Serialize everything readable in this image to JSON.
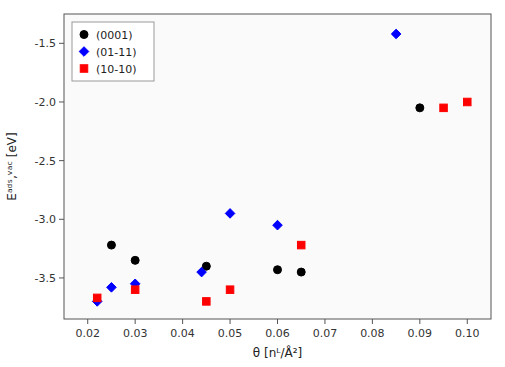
{
  "chart_data": {
    "type": "scatter",
    "xlabel": "θ [nᴸ/Å²]",
    "ylabel": "Eᵃᵈˢ,ᵛᵃᶜ [eV]",
    "series": [
      {
        "name": "(0001)",
        "color": "black",
        "marker": "circle",
        "x": [
          0.025,
          0.03,
          0.045,
          0.06,
          0.065,
          0.09
        ],
        "values": [
          -3.22,
          -3.35,
          -3.4,
          -3.43,
          -3.45,
          -2.05
        ]
      },
      {
        "name": "(01-11)",
        "color": "blue",
        "marker": "diamond",
        "x": [
          0.022,
          0.025,
          0.03,
          0.044,
          0.05,
          0.06,
          0.085
        ],
        "values": [
          -3.7,
          -3.58,
          -3.55,
          -3.45,
          -2.95,
          -3.05,
          -1.42
        ]
      },
      {
        "name": "(10-10)",
        "color": "red",
        "marker": "square",
        "x": [
          0.022,
          0.03,
          0.045,
          0.05,
          0.065,
          0.095,
          0.1
        ],
        "values": [
          -3.67,
          -3.6,
          -3.7,
          -3.6,
          -3.22,
          -2.05,
          -2.0
        ]
      }
    ],
    "xlim": [
      0.015,
      0.105
    ],
    "ylim": [
      -3.85,
      -1.25
    ],
    "xticks": [
      0.02,
      0.03,
      0.04,
      0.05,
      0.06,
      0.07,
      0.08,
      0.09,
      {
        "value": 0.1,
        "label": "0.10"
      }
    ],
    "yticks": [
      -3.5,
      {
        "value": -3,
        "label": "-3.0"
      },
      -2.5,
      {
        "value": -2,
        "label": "-2.0"
      },
      -1.5
    ],
    "grid": false,
    "legend": "upper-left"
  }
}
